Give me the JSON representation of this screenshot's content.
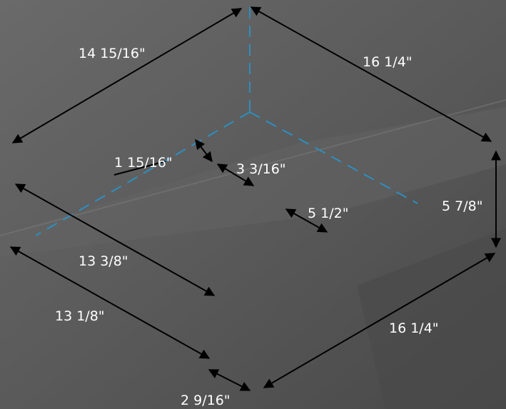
{
  "diagram": {
    "dimensions": {
      "top_left_edge": "14 15/16\"",
      "top_right_edge": "16 1/4\"",
      "right_height": "5 7/8\"",
      "bottom_right_edge": "16 1/4\"",
      "inner_left_upper": "13 3/8\"",
      "outer_left_lower": "13 1/8\"",
      "bottom_offset": "2 9/16\"",
      "inner_small_1": "1 15/16\"",
      "inner_small_2": "3 3/16\"",
      "inner_small_3": "5 1/2\""
    },
    "colors": {
      "background": "#585858",
      "line": "#000000",
      "hidden_edge": "#2d8fc0",
      "label": "#ffffff"
    }
  }
}
